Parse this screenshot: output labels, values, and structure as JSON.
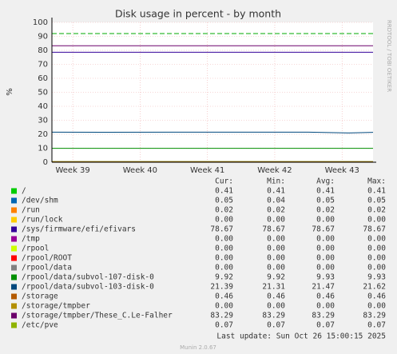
{
  "chart_data": {
    "type": "line",
    "title": "Disk usage in percent - by month",
    "ylabel": "%",
    "side_text": "RRDTOOL / TOBI OETIKER",
    "ylim": [
      0,
      100
    ],
    "yticks": [
      0,
      10,
      20,
      30,
      40,
      50,
      60,
      70,
      80,
      90,
      100
    ],
    "xlim": [
      38.69,
      43.46
    ],
    "xticks": [
      {
        "value": 39,
        "label": "Week 39"
      },
      {
        "value": 40,
        "label": "Week 40"
      },
      {
        "value": 41,
        "label": "Week 41"
      },
      {
        "value": 42,
        "label": "Week 42"
      },
      {
        "value": 43,
        "label": "Week 43"
      }
    ],
    "grid": true,
    "warning": 92,
    "warning_color": "#00aa00",
    "x": [
      38.69,
      39.5,
      40.5,
      41.5,
      42.5,
      43.1,
      43.46
    ],
    "legend_headers": [
      "Cur:",
      "Min:",
      "Avg:",
      "Max:"
    ],
    "series": [
      {
        "name": "/",
        "color": "#00cc00",
        "values": [
          0.41,
          0.41,
          0.41,
          0.41,
          0.41,
          0.41,
          0.41
        ],
        "stats": [
          "0.41",
          "0.41",
          "0.41",
          "0.41"
        ]
      },
      {
        "name": "/dev/shm",
        "color": "#0066b3",
        "values": [
          0.05,
          0.05,
          0.05,
          0.05,
          0.05,
          0.05,
          0.05
        ],
        "stats": [
          "0.05",
          "0.04",
          "0.05",
          "0.05"
        ]
      },
      {
        "name": "/run",
        "color": "#ff8000",
        "values": [
          0.02,
          0.02,
          0.02,
          0.02,
          0.02,
          0.02,
          0.02
        ],
        "stats": [
          "0.02",
          "0.02",
          "0.02",
          "0.02"
        ]
      },
      {
        "name": "/run/lock",
        "color": "#ffcc00",
        "values": [
          0,
          0,
          0,
          0,
          0,
          0,
          0
        ],
        "stats": [
          "0.00",
          "0.00",
          "0.00",
          "0.00"
        ]
      },
      {
        "name": "/sys/firmware/efi/efivars",
        "color": "#330099",
        "values": [
          78.67,
          78.67,
          78.67,
          78.67,
          78.67,
          78.67,
          78.67
        ],
        "stats": [
          "78.67",
          "78.67",
          "78.67",
          "78.67"
        ]
      },
      {
        "name": "/tmp",
        "color": "#990099",
        "values": [
          0,
          0,
          0,
          0,
          0,
          0,
          0
        ],
        "stats": [
          "0.00",
          "0.00",
          "0.00",
          "0.00"
        ]
      },
      {
        "name": "/rpool",
        "color": "#ccff00",
        "values": [
          0,
          0,
          0,
          0,
          0,
          0,
          0
        ],
        "stats": [
          "0.00",
          "0.00",
          "0.00",
          "0.00"
        ]
      },
      {
        "name": "/rpool/ROOT",
        "color": "#ff0000",
        "values": [
          0,
          0,
          0,
          0,
          0,
          0,
          0
        ],
        "stats": [
          "0.00",
          "0.00",
          "0.00",
          "0.00"
        ]
      },
      {
        "name": "/rpool/data",
        "color": "#808080",
        "values": [
          0,
          0,
          0,
          0,
          0,
          0,
          0
        ],
        "stats": [
          "0.00",
          "0.00",
          "0.00",
          "0.00"
        ]
      },
      {
        "name": "/rpool/data/subvol-107-disk-0",
        "color": "#008f00",
        "values": [
          9.92,
          9.92,
          9.93,
          9.93,
          9.93,
          9.92,
          9.92
        ],
        "stats": [
          "9.92",
          "9.92",
          "9.93",
          "9.93"
        ]
      },
      {
        "name": "/rpool/data/subvol-103-disk-0",
        "color": "#00487d",
        "values": [
          21.5,
          21.4,
          21.5,
          21.5,
          21.5,
          20.9,
          21.39
        ],
        "stats": [
          "21.39",
          "21.31",
          "21.47",
          "21.62"
        ]
      },
      {
        "name": "/storage",
        "color": "#b35a00",
        "values": [
          0.46,
          0.46,
          0.46,
          0.46,
          0.46,
          0.46,
          0.46
        ],
        "stats": [
          "0.46",
          "0.46",
          "0.46",
          "0.46"
        ]
      },
      {
        "name": "/storage/tmpber",
        "color": "#b38f00",
        "values": [
          0,
          0,
          0,
          0,
          0,
          0,
          0
        ],
        "stats": [
          "0.00",
          "0.00",
          "0.00",
          "0.00"
        ]
      },
      {
        "name": "/storage/tmpber/These_C.Le-Falher",
        "color": "#6b006b",
        "values": [
          83.29,
          83.29,
          83.29,
          83.29,
          83.29,
          83.29,
          83.29
        ],
        "stats": [
          "83.29",
          "83.29",
          "83.29",
          "83.29"
        ]
      },
      {
        "name": "/etc/pve",
        "color": "#8fb300",
        "values": [
          0.07,
          0.07,
          0.07,
          0.07,
          0.07,
          0.07,
          0.07
        ],
        "stats": [
          "0.07",
          "0.07",
          "0.07",
          "0.07"
        ]
      }
    ],
    "last_update": "Last update: Sun Oct 26 15:00:15 2025",
    "footer": "Munin 2.0.67"
  }
}
